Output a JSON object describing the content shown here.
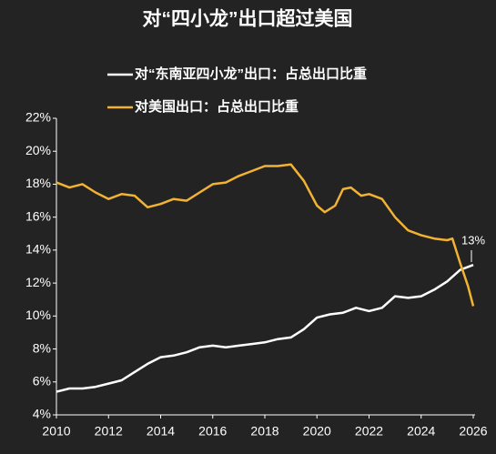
{
  "chart_data": {
    "type": "line",
    "title": "对“四小龙”出口超过美国",
    "legend": "top",
    "xlim": [
      2010,
      2026
    ],
    "xticks": [
      2010,
      2012,
      2014,
      2016,
      2018,
      2020,
      2022,
      2024,
      2026
    ],
    "ylim": [
      4,
      22
    ],
    "yticks": [
      {
        "value": 4,
        "label": "4%"
      },
      {
        "value": 6,
        "label": "6%"
      },
      {
        "value": 8,
        "label": "8%"
      },
      {
        "value": 10,
        "label": "10%"
      },
      {
        "value": 12,
        "label": "12%"
      },
      {
        "value": 14,
        "label": "14%"
      },
      {
        "value": 16,
        "label": "16%"
      },
      {
        "value": 18,
        "label": "18%"
      },
      {
        "value": 20,
        "label": "20%"
      },
      {
        "value": 22,
        "label": "22%"
      }
    ],
    "series": [
      {
        "name": "对“东南亚四小龙”出口：占总出口比重",
        "color": "#ffffff",
        "x": [
          2010,
          2010.5,
          2011,
          2011.5,
          2012,
          2012.5,
          2013,
          2013.5,
          2014,
          2014.5,
          2015,
          2015.5,
          2016,
          2016.5,
          2017,
          2017.5,
          2018,
          2018.5,
          2019,
          2019.5,
          2020,
          2020.5,
          2021,
          2021.5,
          2022,
          2022.5,
          2023,
          2023.5,
          2024,
          2024.5,
          2025,
          2025.5,
          2026
        ],
        "values": [
          5.4,
          5.6,
          5.6,
          5.7,
          5.9,
          6.1,
          6.6,
          7.1,
          7.5,
          7.6,
          7.8,
          8.1,
          8.2,
          8.1,
          8.2,
          8.3,
          8.4,
          8.6,
          8.7,
          9.2,
          9.9,
          10.1,
          10.2,
          10.5,
          10.3,
          10.5,
          11.2,
          11.1,
          11.2,
          11.6,
          12.1,
          12.8,
          13.1
        ]
      },
      {
        "name": "对美国出口：占总出口比重",
        "color": "#f2b233",
        "x": [
          2010,
          2010.5,
          2011,
          2011.5,
          2012,
          2012.5,
          2013,
          2013.5,
          2014,
          2014.5,
          2015,
          2015.5,
          2016,
          2016.5,
          2017,
          2017.5,
          2018,
          2018.5,
          2019,
          2019.5,
          2020,
          2020.3,
          2020.7,
          2021,
          2021.3,
          2021.7,
          2022,
          2022.5,
          2023,
          2023.5,
          2024,
          2024.5,
          2025,
          2025.2,
          2025.5,
          2025.8,
          2026
        ],
        "values": [
          18.1,
          17.8,
          18.0,
          17.5,
          17.1,
          17.4,
          17.3,
          16.6,
          16.8,
          17.1,
          17.0,
          17.5,
          18.0,
          18.1,
          18.5,
          18.8,
          19.1,
          19.1,
          19.2,
          18.2,
          16.7,
          16.3,
          16.7,
          17.7,
          17.8,
          17.3,
          17.4,
          17.1,
          16.0,
          15.2,
          14.9,
          14.7,
          14.6,
          14.7,
          13.2,
          11.8,
          10.6
        ]
      }
    ],
    "annotations": [
      {
        "text": "13%",
        "x": 2026,
        "y": 13
      }
    ]
  }
}
